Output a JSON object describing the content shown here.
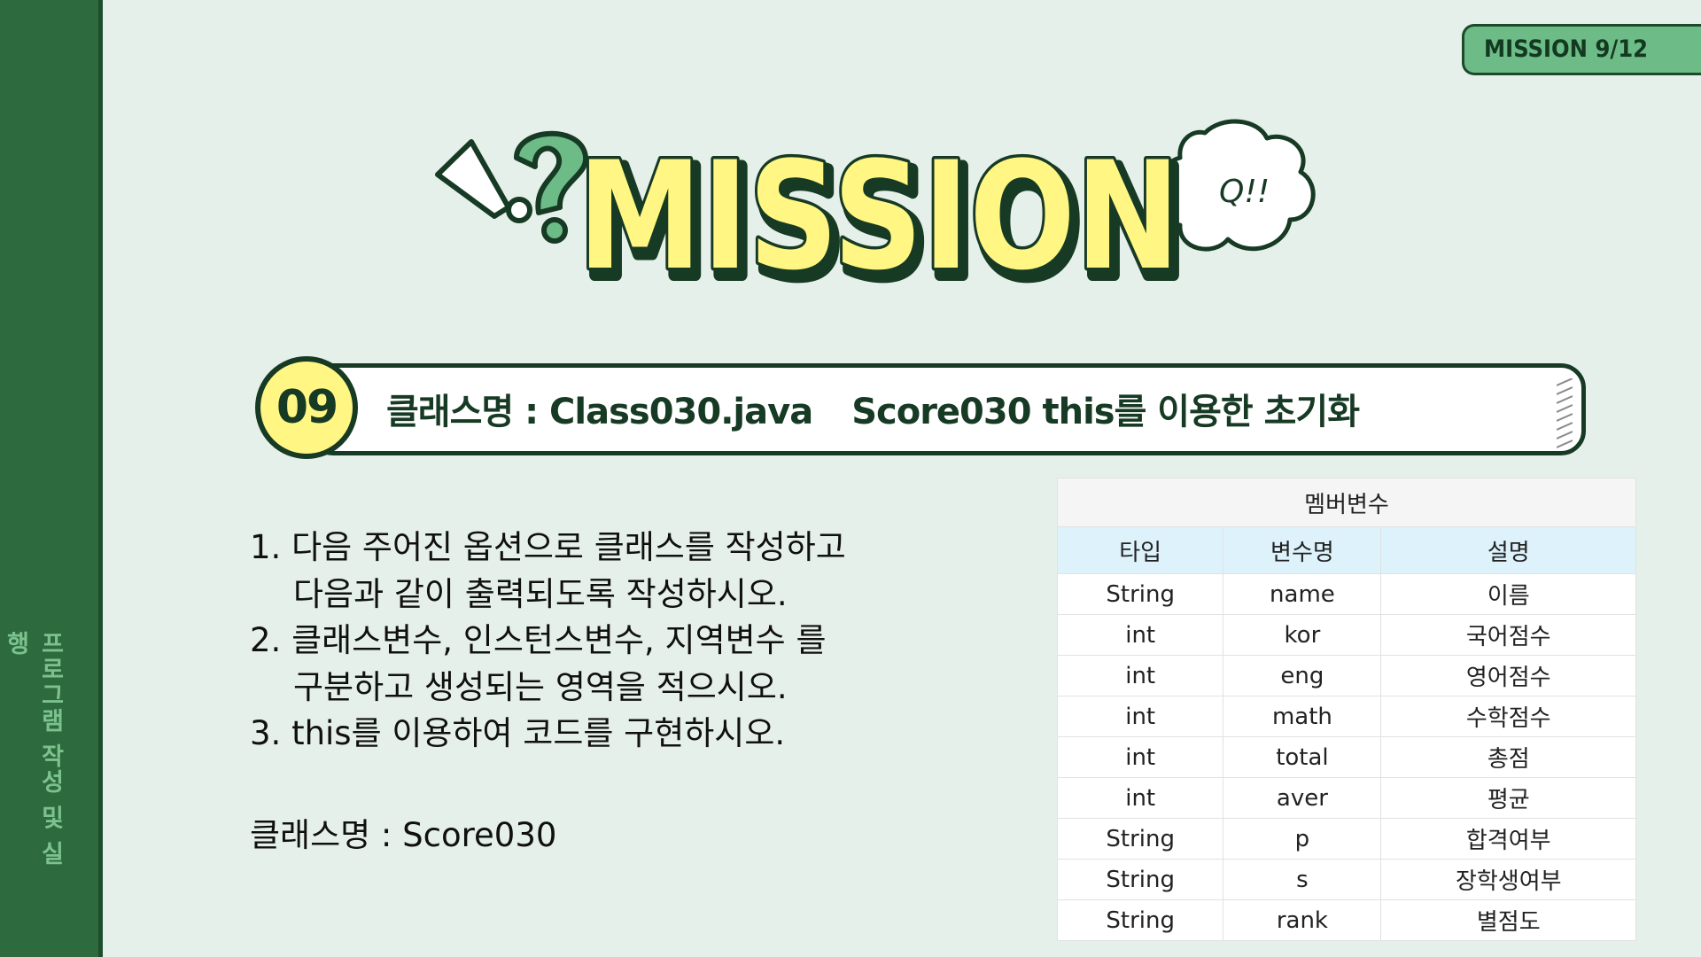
{
  "sidebar": {
    "title": "프로그램 작성 및 실행"
  },
  "badge": {
    "label": "MISSION 9/12"
  },
  "hero": {
    "title": "MISSION",
    "bubble": "Q!!"
  },
  "mission": {
    "number": "09",
    "class_label": "클래스명 : Class030.java",
    "subtitle": "Score030  this를 이용한 초기화"
  },
  "tasks": [
    "1. 다음 주어진 옵션으로 클래스를 작성하고",
    "다음과 같이 출력되도록 작성하시오.",
    "2. 클래스변수, 인스턴스변수, 지역변수 를",
    "구분하고 생성되는 영역을 적으시오.",
    "3. this를 이용하여 코드를 구현하시오."
  ],
  "class_name": "클래스명 : Score030",
  "table": {
    "caption": "멤버변수",
    "headers": [
      "타입",
      "변수명",
      "설명"
    ],
    "rows": [
      [
        "String",
        "name",
        "이름"
      ],
      [
        "int",
        "kor",
        "국어점수"
      ],
      [
        "int",
        "eng",
        "영어점수"
      ],
      [
        "int",
        "math",
        "수학점수"
      ],
      [
        "int",
        "total",
        "총점"
      ],
      [
        "int",
        "aver",
        "평균"
      ],
      [
        "String",
        "p",
        "합격여부"
      ],
      [
        "String",
        "s",
        "장학생여부"
      ],
      [
        "String",
        "rank",
        "별점도"
      ]
    ]
  },
  "colors": {
    "background": "#e6f0ea",
    "sidebar": "#2d6a3e",
    "accent_green": "#6dbb86",
    "title_yellow": "#fff683",
    "outline": "#173a24",
    "table_header": "#def2fb"
  }
}
